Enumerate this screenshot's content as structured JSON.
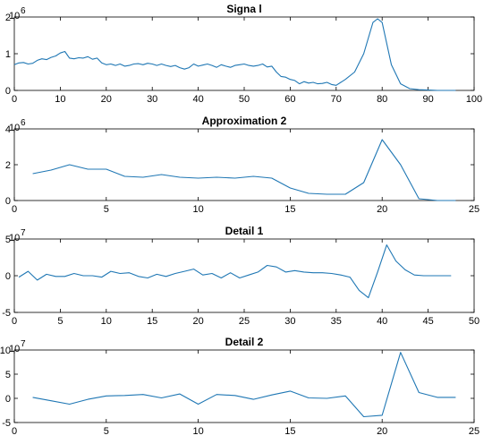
{
  "chart_data": [
    {
      "type": "line",
      "title": "Signa l",
      "exponent_label": "10",
      "exponent_power": "6",
      "xlim": [
        0,
        100
      ],
      "ylim": [
        0,
        2
      ],
      "x_ticks": [
        0,
        10,
        20,
        30,
        40,
        50,
        60,
        70,
        80,
        90,
        100
      ],
      "y_ticks": [
        0,
        1,
        2
      ],
      "x_tick_labels": [
        "0",
        "10",
        "20",
        "30",
        "40",
        "50",
        "60",
        "70",
        "80",
        "90",
        "100"
      ],
      "y_tick_labels": [
        "0",
        "1",
        "2"
      ],
      "grid": false,
      "color": "#1f77b4",
      "series": [
        {
          "x": [
            0,
            1,
            2,
            3,
            4,
            5,
            6,
            7,
            8,
            9,
            10,
            11,
            12,
            13,
            14,
            15,
            16,
            17,
            18,
            19,
            20,
            21,
            22,
            23,
            24,
            25,
            26,
            27,
            28,
            29,
            30,
            31,
            32,
            33,
            34,
            35,
            36,
            37,
            38,
            39,
            40,
            41,
            42,
            43,
            44,
            45,
            46,
            47,
            48,
            49,
            50,
            51,
            52,
            53,
            54,
            55,
            56,
            57,
            58,
            59,
            60,
            61,
            62,
            63,
            64,
            65,
            66,
            67,
            68,
            69,
            70,
            72,
            74,
            76,
            78,
            79,
            80,
            82,
            84,
            86,
            88,
            90,
            92,
            94,
            96
          ],
          "y": [
            0.7,
            0.75,
            0.76,
            0.72,
            0.74,
            0.82,
            0.86,
            0.84,
            0.9,
            0.94,
            1.02,
            1.06,
            0.88,
            0.86,
            0.89,
            0.88,
            0.92,
            0.85,
            0.88,
            0.75,
            0.7,
            0.72,
            0.68,
            0.72,
            0.66,
            0.68,
            0.72,
            0.73,
            0.7,
            0.74,
            0.72,
            0.68,
            0.72,
            0.68,
            0.65,
            0.68,
            0.62,
            0.58,
            0.62,
            0.72,
            0.66,
            0.69,
            0.72,
            0.68,
            0.63,
            0.7,
            0.66,
            0.63,
            0.68,
            0.7,
            0.72,
            0.68,
            0.66,
            0.68,
            0.72,
            0.64,
            0.66,
            0.5,
            0.38,
            0.36,
            0.3,
            0.27,
            0.18,
            0.24,
            0.2,
            0.22,
            0.18,
            0.19,
            0.22,
            0.16,
            0.14,
            0.3,
            0.5,
            1.0,
            1.85,
            1.95,
            1.85,
            0.7,
            0.18,
            0.05,
            0.02,
            0.01,
            0.0,
            0.0,
            0.0
          ]
        }
      ]
    },
    {
      "type": "line",
      "title": "Approximation 2",
      "exponent_label": "10",
      "exponent_power": "6",
      "xlim": [
        0,
        25
      ],
      "ylim": [
        0,
        4
      ],
      "x_ticks": [
        0,
        5,
        10,
        15,
        20,
        25
      ],
      "y_ticks": [
        0,
        2,
        4
      ],
      "x_tick_labels": [
        "0",
        "5",
        "10",
        "15",
        "20",
        "25"
      ],
      "y_tick_labels": [
        "0",
        "2",
        "4"
      ],
      "grid": false,
      "color": "#1f77b4",
      "series": [
        {
          "x": [
            1,
            2,
            3,
            4,
            5,
            6,
            7,
            8,
            9,
            10,
            11,
            12,
            13,
            14,
            15,
            16,
            17,
            18,
            19,
            20,
            21,
            22,
            23,
            24
          ],
          "y": [
            1.5,
            1.7,
            2.0,
            1.75,
            1.75,
            1.35,
            1.3,
            1.45,
            1.3,
            1.25,
            1.3,
            1.25,
            1.35,
            1.25,
            0.7,
            0.4,
            0.35,
            0.35,
            1.0,
            3.4,
            2.0,
            0.1,
            0.0,
            0.0
          ]
        }
      ]
    },
    {
      "type": "line",
      "title": "Detail 1",
      "exponent_label": "10",
      "exponent_power": "7",
      "xlim": [
        0,
        50
      ],
      "ylim": [
        -5,
        5
      ],
      "x_ticks": [
        0,
        5,
        10,
        15,
        20,
        25,
        30,
        35,
        40,
        45,
        50
      ],
      "y_ticks": [
        -5,
        0,
        5
      ],
      "x_tick_labels": [
        "0",
        "5",
        "10",
        "15",
        "20",
        "25",
        "30",
        "35",
        "40",
        "45",
        "50"
      ],
      "y_tick_labels": [
        "-5",
        "0",
        "5"
      ],
      "grid": false,
      "color": "#1f77b4",
      "series": [
        {
          "x": [
            0.5,
            1.5,
            2.5,
            3.5,
            4.5,
            5.5,
            6.5,
            7.5,
            8.5,
            9.5,
            10.5,
            11.5,
            12.5,
            13.5,
            14.5,
            15.5,
            16.5,
            17.5,
            18.5,
            19.5,
            20.5,
            21.5,
            22.5,
            23.5,
            24.5,
            25.5,
            26.5,
            27.5,
            28.5,
            29.5,
            30.5,
            31.5,
            32.5,
            33.5,
            34.5,
            35.5,
            36.5,
            37.5,
            38.5,
            39.5,
            40.5,
            41.5,
            42.5,
            43.5,
            44.5,
            45.5,
            46.5,
            47.5
          ],
          "y": [
            -0.2,
            0.6,
            -0.6,
            0.2,
            -0.1,
            -0.1,
            0.3,
            0.0,
            0.0,
            -0.2,
            0.6,
            0.3,
            0.4,
            -0.1,
            -0.3,
            0.2,
            -0.1,
            0.3,
            0.6,
            0.9,
            0.1,
            0.3,
            -0.3,
            0.4,
            -0.3,
            0.1,
            0.5,
            1.4,
            1.2,
            0.5,
            0.7,
            0.5,
            0.4,
            0.4,
            0.3,
            0.1,
            -0.2,
            -2.0,
            -3.0,
            0.5,
            4.2,
            2.0,
            0.8,
            0.1,
            0.0,
            0.0,
            0.0,
            0.0
          ]
        }
      ]
    },
    {
      "type": "line",
      "title": "Detail 2",
      "exponent_label": "10",
      "exponent_power": "7",
      "xlim": [
        0,
        25
      ],
      "ylim": [
        -5,
        10
      ],
      "x_ticks": [
        0,
        5,
        10,
        15,
        20,
        25
      ],
      "y_ticks": [
        -5,
        0,
        5,
        10
      ],
      "x_tick_labels": [
        "0",
        "5",
        "10",
        "15",
        "20",
        "25"
      ],
      "y_tick_labels": [
        "-5",
        "0",
        "5",
        "10"
      ],
      "grid": false,
      "color": "#1f77b4",
      "series": [
        {
          "x": [
            1,
            2,
            3,
            4,
            5,
            6,
            7,
            8,
            9,
            10,
            11,
            12,
            13,
            14,
            15,
            16,
            17,
            18,
            19,
            20,
            21,
            22,
            23,
            24
          ],
          "y": [
            0.2,
            -0.5,
            -1.2,
            -0.2,
            0.5,
            0.6,
            0.8,
            0.1,
            0.9,
            -1.2,
            0.8,
            0.6,
            -0.2,
            0.7,
            1.5,
            0.1,
            0.0,
            0.5,
            -3.8,
            -3.5,
            9.5,
            1.2,
            0.2,
            0.2
          ]
        }
      ]
    }
  ]
}
